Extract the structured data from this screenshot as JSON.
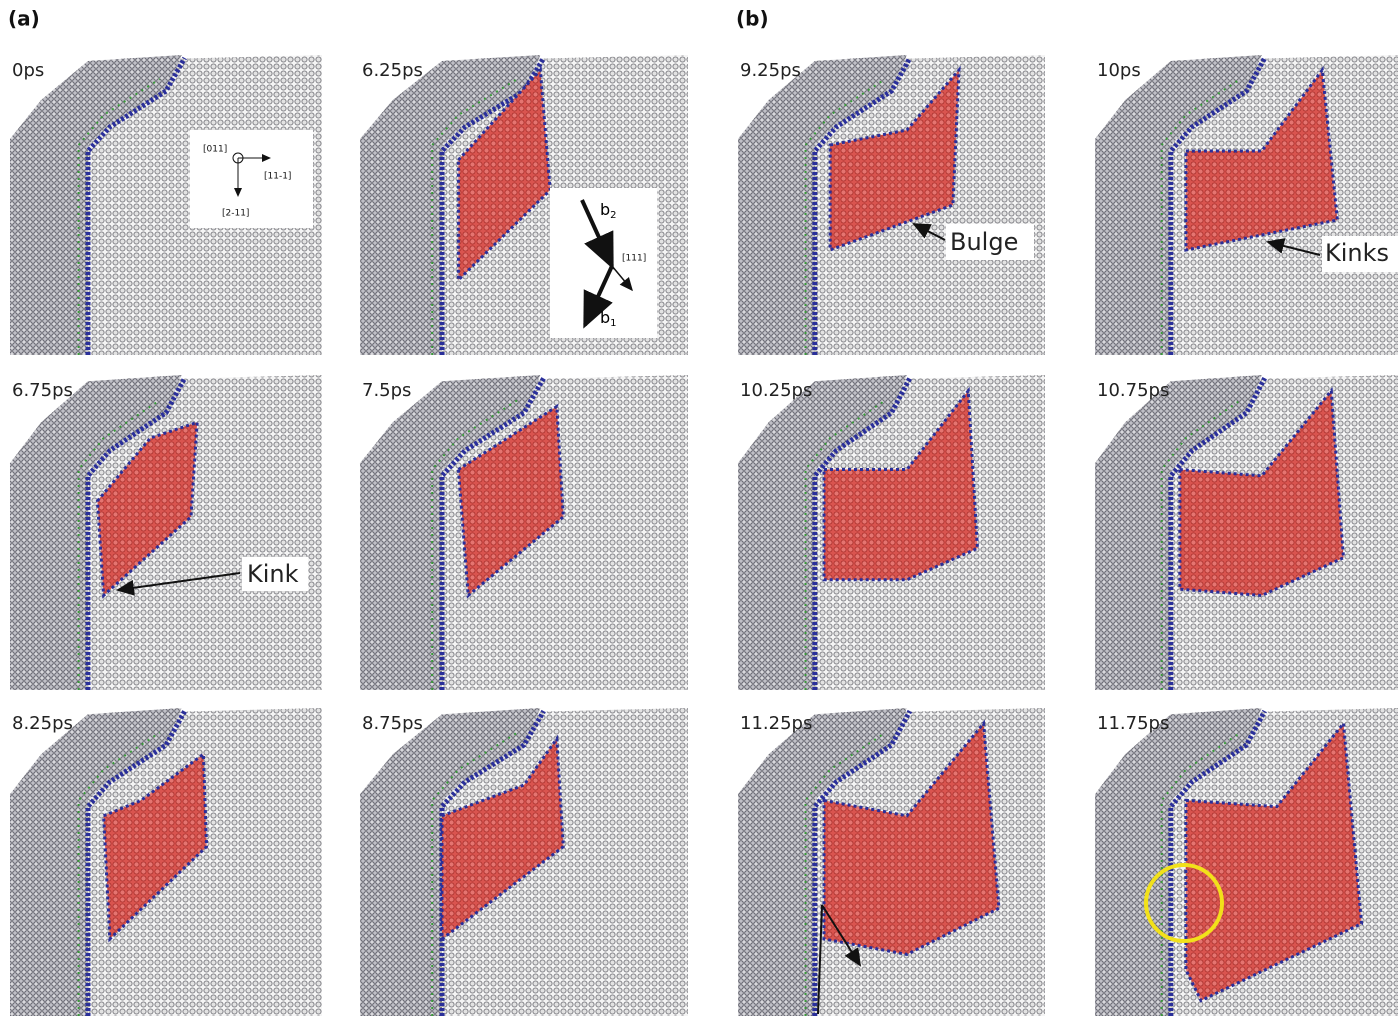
{
  "parts": [
    {
      "label": "(a)"
    },
    {
      "label": "(b)"
    }
  ],
  "panels": [
    {
      "time": "0ps"
    },
    {
      "time": "6.25ps"
    },
    {
      "time": "6.75ps"
    },
    {
      "time": "7.5ps"
    },
    {
      "time": "8.25ps"
    },
    {
      "time": "8.75ps"
    },
    {
      "time": "9.25ps"
    },
    {
      "time": "10ps"
    },
    {
      "time": "10.25ps"
    },
    {
      "time": "10.75ps"
    },
    {
      "time": "11.25ps"
    },
    {
      "time": "11.75ps"
    }
  ],
  "annotations": [
    {
      "text": "Kink"
    },
    {
      "text": "Bulge"
    },
    {
      "text": "Kinks"
    }
  ],
  "axes_inset": {
    "view": "[011]",
    "right": "[11-1]",
    "down": "[2-11]"
  },
  "burgers_inset": {
    "plane": "[111]",
    "upper": {
      "symbol": "b",
      "subscript": "2"
    },
    "lower": {
      "symbol": "b",
      "subscript": "1"
    }
  }
}
